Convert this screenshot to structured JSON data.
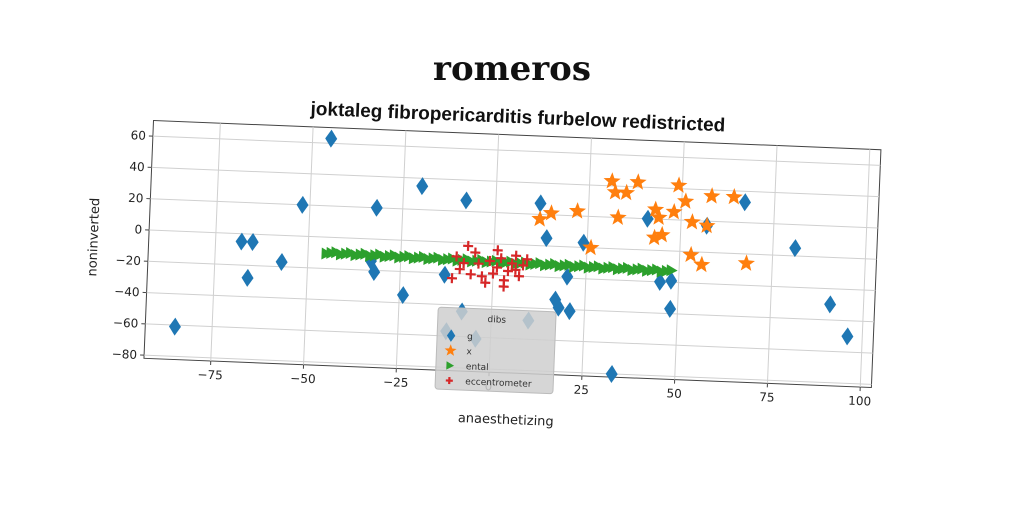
{
  "suptitle": "romeros",
  "chart_data": {
    "type": "scatter",
    "title": "joktaleg fibropericarditis furbelow redistricted",
    "xlabel": "anaesthetizing",
    "ylabel": "noninverted",
    "xlim": [
      -93,
      103
    ],
    "ylim": [
      -82,
      70
    ],
    "xticks": [
      -75,
      -50,
      -25,
      0,
      25,
      50,
      75,
      100
    ],
    "yticks": [
      -80,
      -60,
      -40,
      -20,
      0,
      20,
      40,
      60
    ],
    "xtick_labels": [
      "−75",
      "−50",
      "−25",
      "0",
      "25",
      "50",
      "75",
      "100"
    ],
    "ytick_labels": [
      "−80",
      "−60",
      "−40",
      "−20",
      "0",
      "20",
      "40",
      "60"
    ],
    "grid": true,
    "legend": {
      "title": "dibs",
      "placement": "lower center"
    },
    "series": [
      {
        "name": "g",
        "marker": "diamond",
        "color": "#1f77b4",
        "points": [
          [
            -45,
            63
          ],
          [
            -85,
            -61
          ],
          [
            -68,
            -5
          ],
          [
            -65,
            -5
          ],
          [
            -66,
            -28
          ],
          [
            -57,
            -17
          ],
          [
            -52,
            20
          ],
          [
            -32,
            20
          ],
          [
            -33,
            -14
          ],
          [
            -32,
            -21
          ],
          [
            -24,
            -35
          ],
          [
            -20,
            35
          ],
          [
            -13,
            -21
          ],
          [
            -12,
            -57
          ],
          [
            -8,
            -44
          ],
          [
            -8,
            27
          ],
          [
            -4,
            -61
          ],
          [
            10,
            -48
          ],
          [
            12,
            27
          ],
          [
            14,
            5
          ],
          [
            17,
            -34
          ],
          [
            18,
            -39
          ],
          [
            20,
            -19
          ],
          [
            21,
            -41
          ],
          [
            24,
            3
          ],
          [
            33,
            -80
          ],
          [
            41,
            20
          ],
          [
            45,
            -20
          ],
          [
            48,
            -19
          ],
          [
            48,
            -37
          ],
          [
            57,
            17
          ],
          [
            67,
            33
          ],
          [
            81,
            5
          ],
          [
            91,
            -30
          ],
          [
            96,
            -50
          ]
        ]
      },
      {
        "name": "x",
        "marker": "star",
        "color": "#ff7f0e",
        "points": [
          [
            31,
            43
          ],
          [
            32,
            36
          ],
          [
            35,
            36
          ],
          [
            38,
            43
          ],
          [
            33,
            20
          ],
          [
            43,
            26
          ],
          [
            44,
            21
          ],
          [
            43,
            8
          ],
          [
            45,
            10
          ],
          [
            48,
            25
          ],
          [
            49,
            42
          ],
          [
            51,
            32
          ],
          [
            53,
            19
          ],
          [
            57,
            17
          ],
          [
            58,
            36
          ],
          [
            64,
            36
          ],
          [
            53,
            -2
          ],
          [
            56,
            -8
          ],
          [
            68,
            -6
          ],
          [
            12,
            17
          ],
          [
            15,
            21
          ],
          [
            22,
            23
          ],
          [
            26,
            0
          ]
        ]
      },
      {
        "name": "ental",
        "marker": "triangle-right",
        "color": "#2ca02c",
        "stripe": {
          "x_from": -45,
          "x_to": 48,
          "y_from": -10,
          "y_to": -13,
          "count": 72
        }
      },
      {
        "name": "eccentrometer",
        "marker": "plus",
        "color": "#d62728",
        "points": [
          [
            -10,
            -9
          ],
          [
            -8,
            -13
          ],
          [
            -9,
            -17
          ],
          [
            -11,
            -23
          ],
          [
            -6,
            -20
          ],
          [
            -5,
            -6
          ],
          [
            -4,
            -13
          ],
          [
            -3,
            -21
          ],
          [
            -2,
            -25
          ],
          [
            0,
            -19
          ],
          [
            1,
            -15
          ],
          [
            2,
            -9
          ],
          [
            3,
            -23
          ],
          [
            4,
            -17
          ],
          [
            5,
            -12
          ],
          [
            6,
            -7
          ],
          [
            7,
            -20
          ],
          [
            8,
            -13
          ],
          [
            9,
            -9
          ],
          [
            -7,
            -2
          ],
          [
            1,
            -4
          ],
          [
            3,
            -27
          ],
          [
            6,
            -16
          ],
          [
            -1,
            -11
          ]
        ]
      }
    ]
  }
}
